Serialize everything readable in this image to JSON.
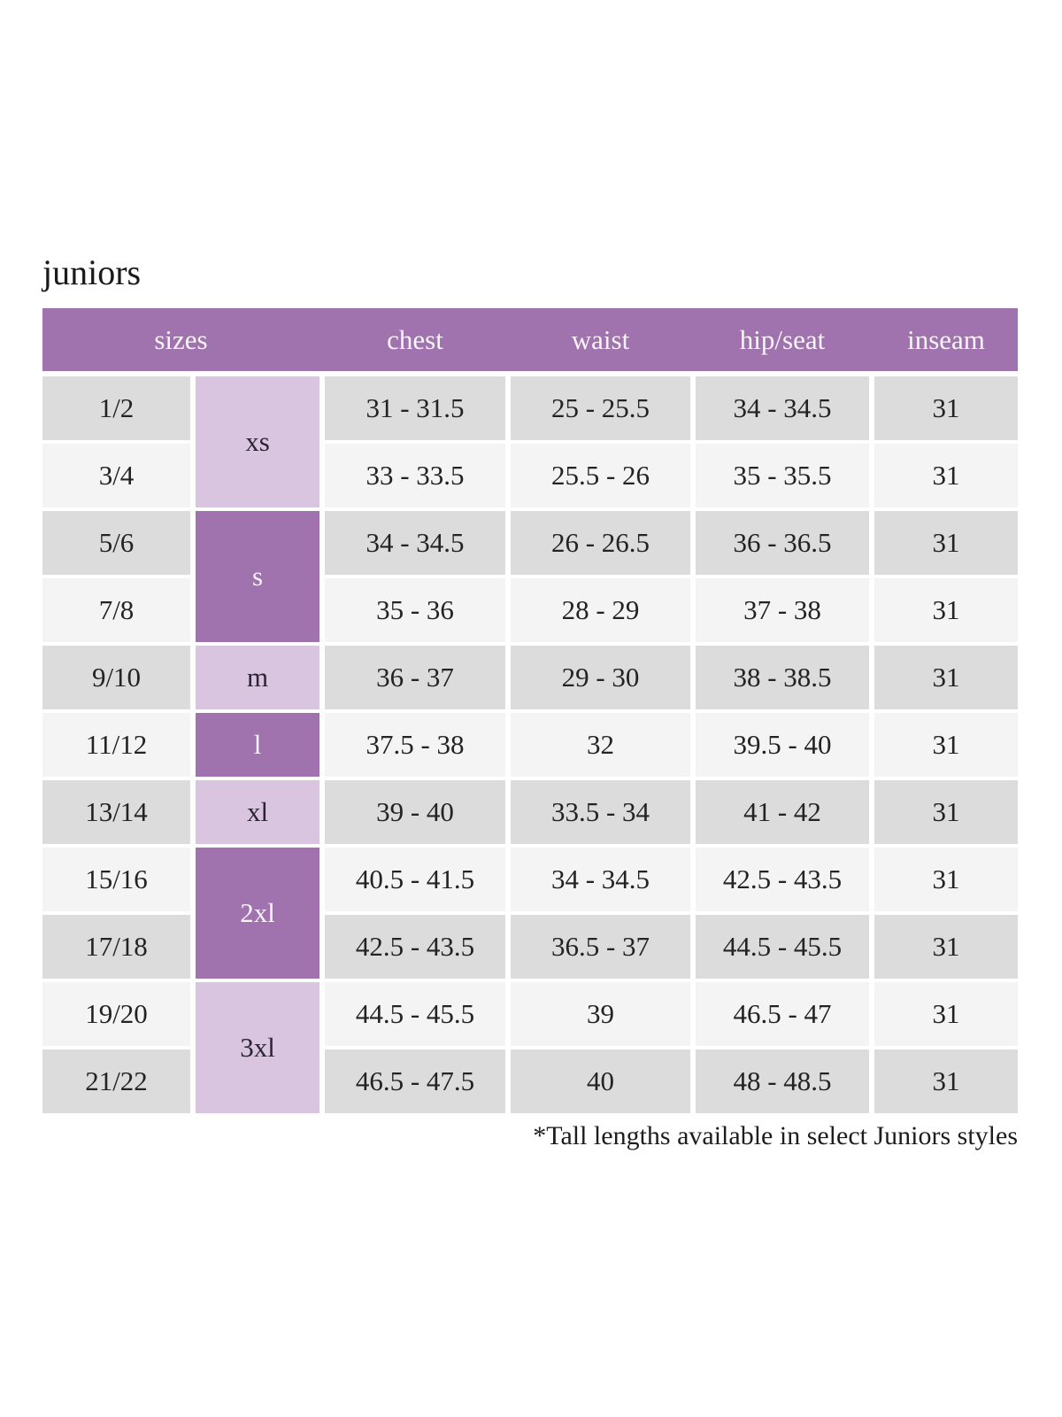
{
  "title": "juniors",
  "footnote": "*Tall lengths available in select Juniors styles",
  "colors": {
    "header_purple": "#a173ae",
    "dark_purple": "#a173ae",
    "light_purple": "#d9c5df",
    "row_gray": "#dcdcdc",
    "row_light": "#f4f4f4"
  },
  "table": {
    "headers": {
      "sizes": "sizes",
      "chest": "chest",
      "waist": "waist",
      "hip_seat": "hip/seat",
      "inseam": "inseam"
    },
    "letter_sizes": [
      {
        "label": "xs",
        "rows": "1/2 - 3/4",
        "shade": "light"
      },
      {
        "label": "s",
        "rows": "5/6 - 7/8",
        "shade": "dark"
      },
      {
        "label": "m",
        "rows": "9/10",
        "shade": "light"
      },
      {
        "label": "l",
        "rows": "11/12",
        "shade": "dark"
      },
      {
        "label": "xl",
        "rows": "13/14",
        "shade": "light"
      },
      {
        "label": "2xl",
        "rows": "15/16 - 17/18",
        "shade": "dark"
      },
      {
        "label": "3xl",
        "rows": "19/20 - 21/22",
        "shade": "light"
      }
    ],
    "rows": [
      {
        "size": "1/2",
        "chest": "31 - 31.5",
        "waist": "25 - 25.5",
        "hip_seat": "34 - 34.5",
        "inseam": "31"
      },
      {
        "size": "3/4",
        "chest": "33 - 33.5",
        "waist": "25.5 - 26",
        "hip_seat": "35 - 35.5",
        "inseam": "31"
      },
      {
        "size": "5/6",
        "chest": "34 - 34.5",
        "waist": "26 - 26.5",
        "hip_seat": "36 - 36.5",
        "inseam": "31"
      },
      {
        "size": "7/8",
        "chest": "35 - 36",
        "waist": "28 - 29",
        "hip_seat": "37 - 38",
        "inseam": "31"
      },
      {
        "size": "9/10",
        "chest": "36 - 37",
        "waist": "29 - 30",
        "hip_seat": "38 - 38.5",
        "inseam": "31"
      },
      {
        "size": "11/12",
        "chest": "37.5 - 38",
        "waist": "32",
        "hip_seat": "39.5 - 40",
        "inseam": "31"
      },
      {
        "size": "13/14",
        "chest": "39 - 40",
        "waist": "33.5 - 34",
        "hip_seat": "41 - 42",
        "inseam": "31"
      },
      {
        "size": "15/16",
        "chest": "40.5 - 41.5",
        "waist": "34 - 34.5",
        "hip_seat": "42.5 - 43.5",
        "inseam": "31"
      },
      {
        "size": "17/18",
        "chest": "42.5 - 43.5",
        "waist": "36.5 - 37",
        "hip_seat": "44.5 - 45.5",
        "inseam": "31"
      },
      {
        "size": "19/20",
        "chest": "44.5 - 45.5",
        "waist": "39",
        "hip_seat": "46.5 - 47",
        "inseam": "31"
      },
      {
        "size": "21/22",
        "chest": "46.5 - 47.5",
        "waist": "40",
        "hip_seat": "48 - 48.5",
        "inseam": "31"
      }
    ]
  }
}
